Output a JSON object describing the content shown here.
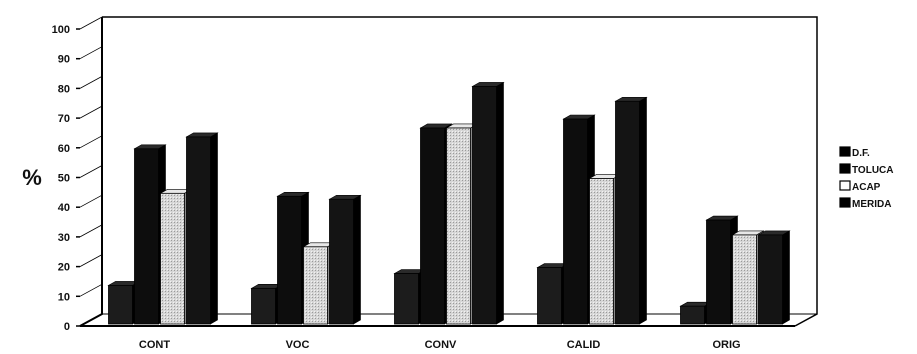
{
  "chart_data": {
    "type": "bar",
    "title": "",
    "xlabel": "",
    "ylabel": "%",
    "ylim": [
      0,
      100
    ],
    "yticks": [
      0,
      10,
      20,
      30,
      40,
      50,
      60,
      70,
      80,
      90,
      100
    ],
    "categories": [
      "CONT",
      "VOC",
      "CONV",
      "CALID",
      "ORIG"
    ],
    "series": [
      {
        "name": "D.F.",
        "values": [
          13,
          12,
          17,
          19,
          6
        ],
        "color": "#1c1c1c"
      },
      {
        "name": "TOLUCA",
        "values": [
          59,
          43,
          66,
          69,
          35
        ],
        "color": "#0d0d0d"
      },
      {
        "name": "ACAP",
        "values": [
          44,
          26,
          66,
          49,
          30
        ],
        "color": "#cfcfcf"
      },
      {
        "name": "MERIDA",
        "values": [
          63,
          42,
          80,
          75,
          30
        ],
        "color": "#141414"
      }
    ],
    "legend_position": "right",
    "grid": false
  }
}
